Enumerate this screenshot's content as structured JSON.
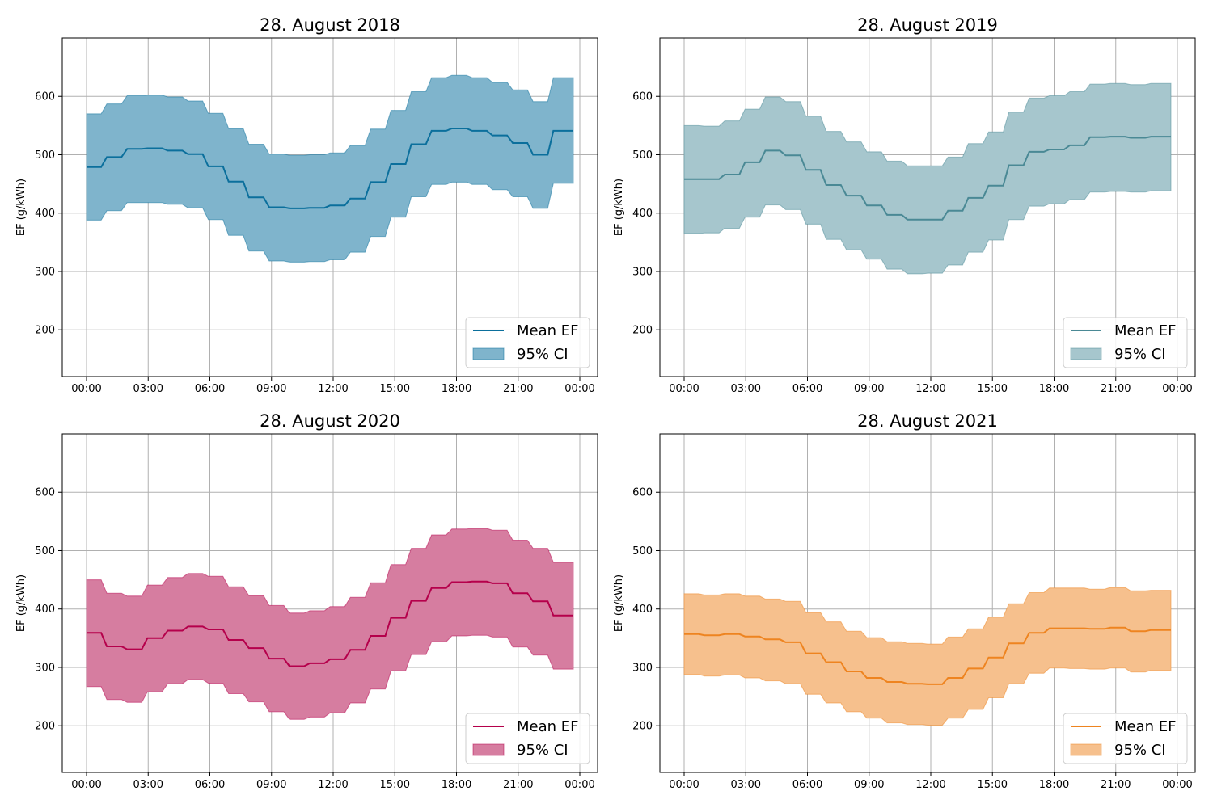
{
  "chart_data": [
    {
      "type": "line",
      "title": "28. August 2018",
      "ylabel": "EF (g/kWh)",
      "ylim": [
        120,
        700
      ],
      "yticks": [
        "200",
        "300",
        "400",
        "500",
        "600"
      ],
      "xticks": [
        "00:00",
        "03:00",
        "06:00",
        "09:00",
        "12:00",
        "15:00",
        "18:00",
        "21:00",
        "00:00"
      ],
      "color": "#0b6f9c",
      "fill_color": "#7fb4cc",
      "legend_position": "lower right",
      "series": [
        {
          "name": "Mean EF",
          "values": [
            479,
            496,
            510,
            511,
            507,
            501,
            480,
            454,
            427,
            410,
            408,
            409,
            413,
            425,
            453,
            484,
            518,
            541,
            545,
            541,
            533,
            520,
            500,
            541
          ]
        },
        {
          "name": "95% CI",
          "lower": [
            388,
            404,
            418,
            418,
            415,
            409,
            389,
            362,
            335,
            318,
            316,
            317,
            320,
            333,
            360,
            393,
            428,
            449,
            453,
            449,
            440,
            428,
            408,
            451
          ],
          "upper": [
            570,
            587,
            601,
            602,
            599,
            592,
            571,
            545,
            518,
            501,
            499,
            500,
            503,
            516,
            544,
            576,
            608,
            632,
            636,
            632,
            624,
            611,
            591,
            632
          ]
        }
      ]
    },
    {
      "type": "line",
      "title": "28. August 2019",
      "ylabel": "EF (g/kWh)",
      "ylim": [
        120,
        700
      ],
      "yticks": [
        "200",
        "300",
        "400",
        "500",
        "600"
      ],
      "xticks": [
        "00:00",
        "03:00",
        "06:00",
        "09:00",
        "12:00",
        "15:00",
        "18:00",
        "21:00",
        "00:00"
      ],
      "color": "#4a8995",
      "fill_color": "#a6c6cd",
      "legend_position": "lower right",
      "series": [
        {
          "name": "Mean EF",
          "values": [
            458,
            458,
            466,
            487,
            507,
            499,
            474,
            448,
            430,
            413,
            397,
            389,
            389,
            404,
            426,
            447,
            482,
            505,
            509,
            516,
            530,
            531,
            529,
            531
          ]
        },
        {
          "name": "95% CI",
          "lower": [
            365,
            366,
            374,
            393,
            414,
            406,
            381,
            355,
            337,
            321,
            304,
            296,
            297,
            311,
            333,
            354,
            389,
            412,
            416,
            423,
            436,
            437,
            436,
            438
          ],
          "upper": [
            550,
            549,
            558,
            578,
            599,
            591,
            566,
            540,
            522,
            505,
            489,
            481,
            481,
            496,
            519,
            539,
            573,
            597,
            601,
            608,
            621,
            622,
            620,
            622
          ]
        }
      ]
    },
    {
      "type": "line",
      "title": "28. August 2020",
      "ylabel": "EF (g/kWh)",
      "ylim": [
        120,
        700
      ],
      "yticks": [
        "200",
        "300",
        "400",
        "500",
        "600"
      ],
      "xticks": [
        "00:00",
        "03:00",
        "06:00",
        "09:00",
        "12:00",
        "15:00",
        "18:00",
        "21:00",
        "00:00"
      ],
      "color": "#b5004b",
      "fill_color": "#d67da0",
      "legend_position": "lower right",
      "series": [
        {
          "name": "Mean EF",
          "values": [
            359,
            336,
            331,
            350,
            363,
            370,
            365,
            347,
            333,
            315,
            302,
            307,
            314,
            330,
            354,
            385,
            414,
            436,
            446,
            447,
            444,
            427,
            413,
            389
          ]
        },
        {
          "name": "95% CI",
          "lower": [
            267,
            245,
            240,
            258,
            272,
            279,
            273,
            255,
            241,
            224,
            211,
            215,
            222,
            239,
            263,
            294,
            322,
            344,
            354,
            355,
            352,
            335,
            321,
            297
          ],
          "upper": [
            450,
            427,
            422,
            441,
            454,
            461,
            456,
            438,
            423,
            406,
            393,
            397,
            404,
            420,
            445,
            476,
            504,
            527,
            537,
            538,
            535,
            518,
            504,
            480
          ]
        }
      ]
    },
    {
      "type": "line",
      "title": "28. August 2021",
      "ylabel": "EF (g/kWh)",
      "ylim": [
        120,
        700
      ],
      "yticks": [
        "200",
        "300",
        "400",
        "500",
        "600"
      ],
      "xticks": [
        "00:00",
        "03:00",
        "06:00",
        "09:00",
        "12:00",
        "15:00",
        "18:00",
        "21:00",
        "00:00"
      ],
      "color": "#ee8420",
      "fill_color": "#f6c08d",
      "legend_position": "lower right",
      "series": [
        {
          "name": "Mean EF",
          "values": [
            357,
            355,
            357,
            353,
            348,
            343,
            324,
            309,
            293,
            282,
            275,
            272,
            271,
            282,
            298,
            317,
            341,
            359,
            367,
            367,
            366,
            368,
            362,
            364
          ]
        },
        {
          "name": "95% CI",
          "lower": [
            288,
            285,
            287,
            282,
            277,
            272,
            254,
            239,
            224,
            213,
            205,
            202,
            201,
            213,
            228,
            248,
            272,
            290,
            299,
            298,
            297,
            299,
            292,
            295
          ],
          "upper": [
            426,
            424,
            426,
            422,
            417,
            413,
            394,
            378,
            362,
            351,
            344,
            341,
            340,
            352,
            366,
            386,
            409,
            428,
            436,
            436,
            434,
            437,
            431,
            432
          ]
        }
      ]
    }
  ]
}
